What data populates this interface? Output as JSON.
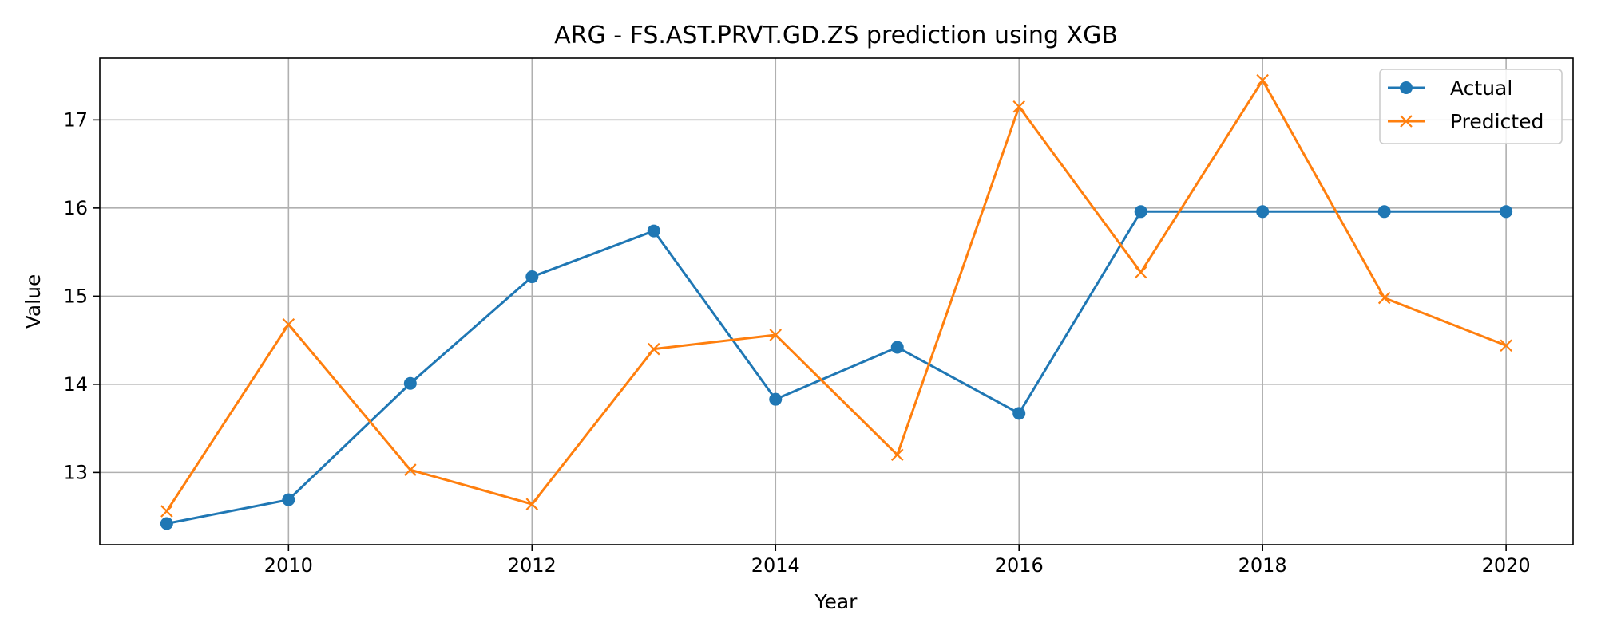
{
  "chart_data": {
    "type": "line",
    "title": "ARG - FS.AST.PRVT.GD.ZS prediction using XGB",
    "xlabel": "Year",
    "ylabel": "Value",
    "xlim": [
      2008.45,
      2020.55
    ],
    "ylim": [
      12.18,
      17.7
    ],
    "xticks": [
      2010,
      2012,
      2014,
      2016,
      2018,
      2020
    ],
    "yticks": [
      13,
      14,
      15,
      16,
      17
    ],
    "grid": true,
    "legend_position": "top-right",
    "x": [
      2009,
      2010,
      2011,
      2012,
      2013,
      2014,
      2015,
      2016,
      2017,
      2018,
      2019,
      2020
    ],
    "series": [
      {
        "name": "Actual",
        "color": "#1f77b4",
        "marker": "circle",
        "values": [
          12.42,
          12.69,
          14.01,
          15.22,
          15.74,
          13.83,
          14.42,
          13.67,
          15.96,
          15.96,
          15.96,
          15.96
        ]
      },
      {
        "name": "Predicted",
        "color": "#ff7f0e",
        "marker": "x",
        "values": [
          12.56,
          14.68,
          13.03,
          12.64,
          14.4,
          14.56,
          13.2,
          17.15,
          15.27,
          17.45,
          14.98,
          14.44
        ]
      }
    ]
  }
}
